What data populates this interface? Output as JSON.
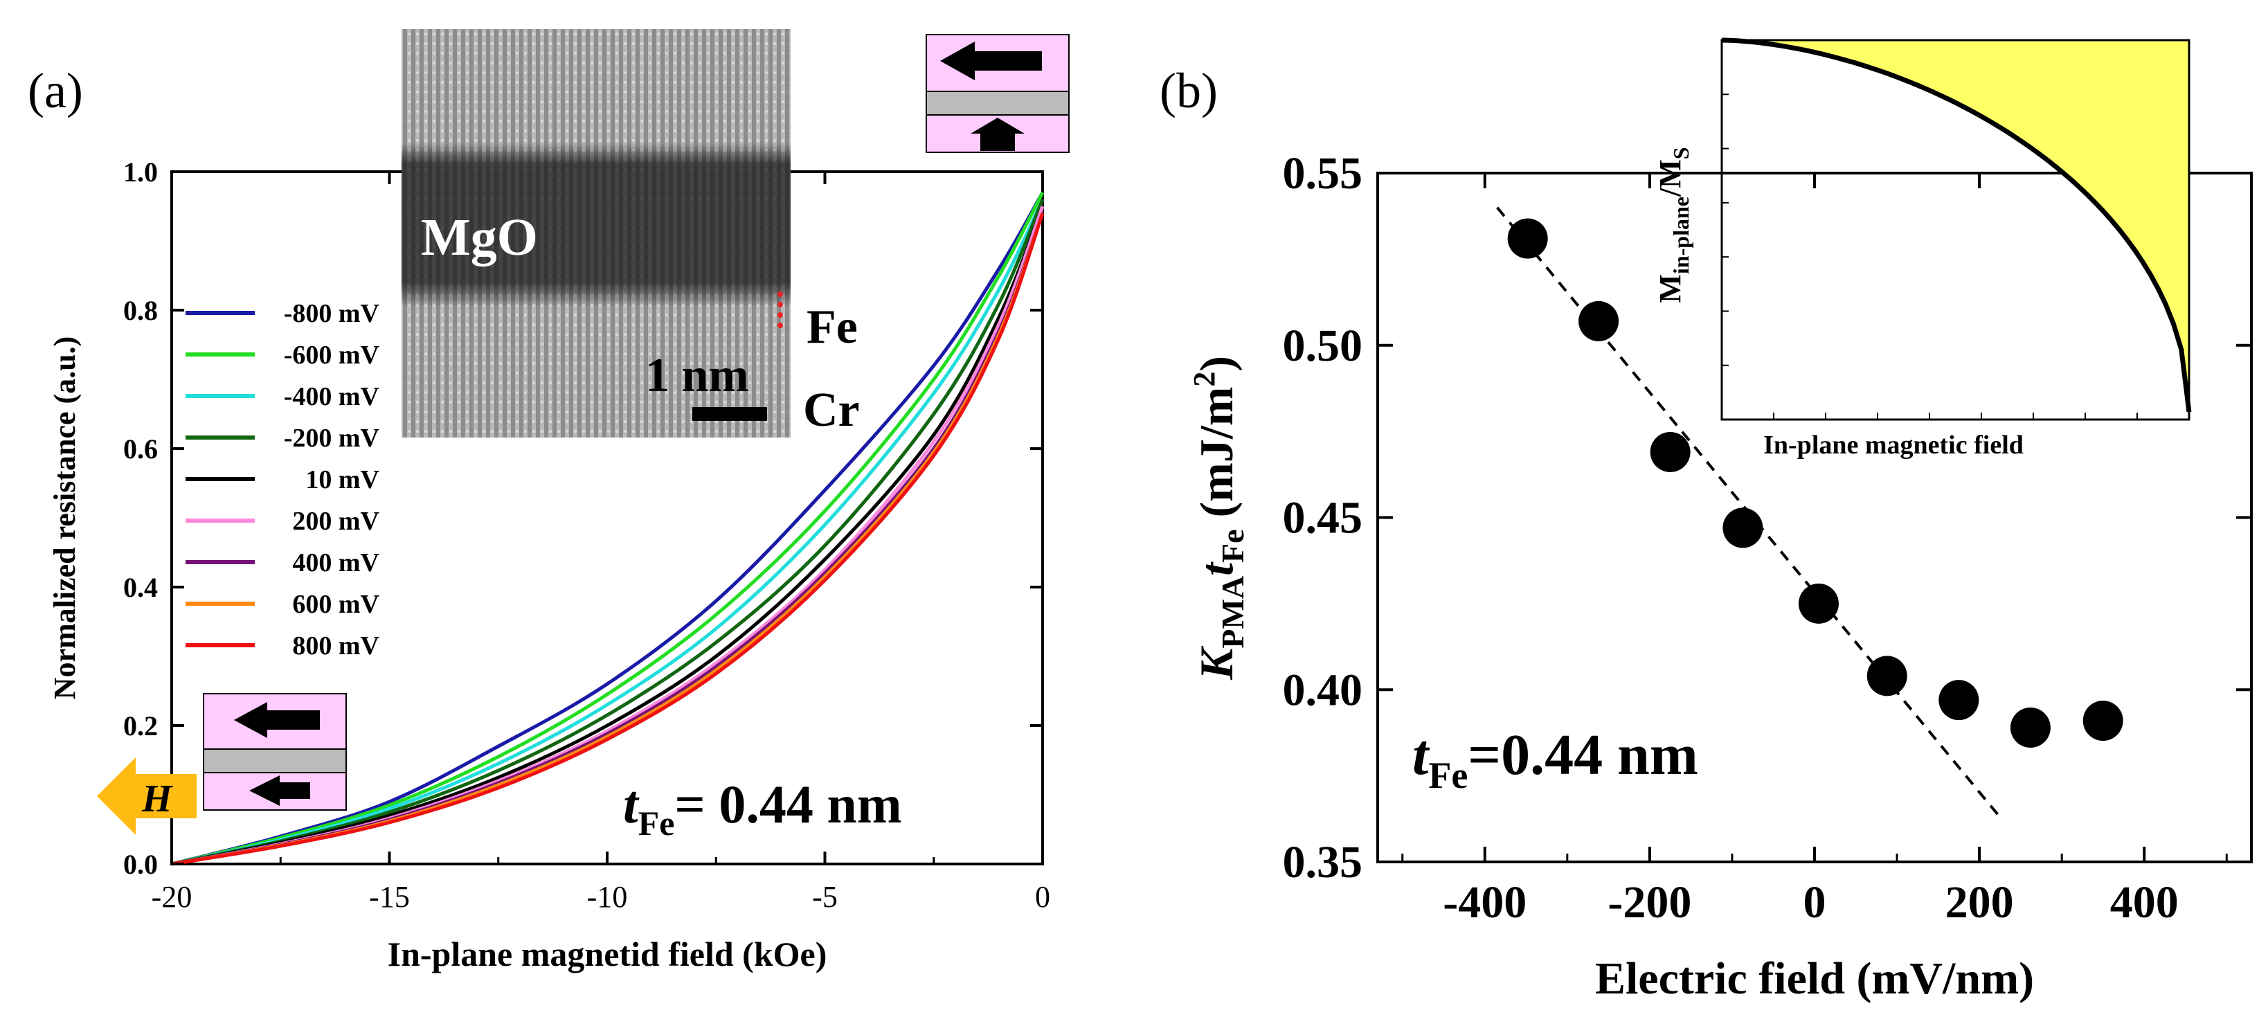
{
  "chart_data": [
    {
      "panel_label": "(a)",
      "type": "line",
      "xlabel": "In-plane magnetid field (kOe)",
      "ylabel": "Normalized resistance (a.u.)",
      "xlim": [
        -20,
        0
      ],
      "ylim": [
        0,
        1.0
      ],
      "x_ticks": [
        "-20",
        "-15",
        "-10",
        "-5",
        "0"
      ],
      "y_ticks": [
        "0.0",
        "0.2",
        "0.4",
        "0.6",
        "0.8",
        "1.0"
      ],
      "x_tick_values": [
        -20,
        -15,
        -10,
        -5,
        0
      ],
      "y_tick_values": [
        0,
        0.2,
        0.4,
        0.6,
        0.8,
        1.0
      ],
      "legend_position": "left",
      "series": [
        {
          "name": "-800 mV",
          "color": "#1a1aa8",
          "x": [
            -20,
            -17.5,
            -15,
            -12.5,
            -10,
            -7.5,
            -5,
            -2.5,
            -1,
            0
          ],
          "y": [
            0.0,
            0.04,
            0.09,
            0.17,
            0.26,
            0.38,
            0.54,
            0.72,
            0.86,
            0.97
          ]
        },
        {
          "name": "-600 mV",
          "color": "#22dd22",
          "x": [
            -20,
            -17.5,
            -15,
            -12.5,
            -10,
            -7.5,
            -5,
            -2.5,
            -1,
            0
          ],
          "y": [
            0.0,
            0.038,
            0.085,
            0.155,
            0.245,
            0.36,
            0.51,
            0.7,
            0.85,
            0.97
          ]
        },
        {
          "name": "-400 mV",
          "color": "#22dddd",
          "x": [
            -20,
            -17.5,
            -15,
            -12.5,
            -10,
            -7.5,
            -5,
            -2.5,
            -1,
            0
          ],
          "y": [
            0.0,
            0.035,
            0.08,
            0.145,
            0.23,
            0.34,
            0.49,
            0.68,
            0.83,
            0.96
          ]
        },
        {
          "name": "-200 mV",
          "color": "#116611",
          "x": [
            -20,
            -17.5,
            -15,
            -12.5,
            -10,
            -7.5,
            -5,
            -2.5,
            -1,
            0
          ],
          "y": [
            0.0,
            0.033,
            0.075,
            0.135,
            0.215,
            0.32,
            0.46,
            0.65,
            0.81,
            0.96
          ]
        },
        {
          "name": "10 mV",
          "color": "#000000",
          "x": [
            -20,
            -17.5,
            -15,
            -12.5,
            -10,
            -7.5,
            -5,
            -2.5,
            -1,
            0
          ],
          "y": [
            0.0,
            0.031,
            0.07,
            0.125,
            0.2,
            0.3,
            0.44,
            0.62,
            0.79,
            0.95
          ]
        },
        {
          "name": "200 mV",
          "color": "#ff88dd",
          "x": [
            -20,
            -17.5,
            -15,
            -12.5,
            -10,
            -7.5,
            -5,
            -2.5,
            -1,
            0
          ],
          "y": [
            0.0,
            0.029,
            0.066,
            0.12,
            0.192,
            0.29,
            0.425,
            0.61,
            0.78,
            0.95
          ]
        },
        {
          "name": "400 mV",
          "color": "#771177",
          "x": [
            -20,
            -17.5,
            -15,
            -12.5,
            -10,
            -7.5,
            -5,
            -2.5,
            -1,
            0
          ],
          "y": [
            0.0,
            0.028,
            0.064,
            0.117,
            0.188,
            0.285,
            0.42,
            0.6,
            0.77,
            0.94
          ]
        },
        {
          "name": "600 mV",
          "color": "#ff8811",
          "x": [
            -20,
            -17.5,
            -15,
            -12.5,
            -10,
            -7.5,
            -5,
            -2.5,
            -1,
            0
          ],
          "y": [
            0.0,
            0.027,
            0.062,
            0.114,
            0.184,
            0.28,
            0.415,
            0.595,
            0.765,
            0.94
          ]
        },
        {
          "name": "800 mV",
          "color": "#ee1111",
          "x": [
            -20,
            -17.5,
            -15,
            -12.5,
            -10,
            -7.5,
            -5,
            -2.5,
            -1,
            0
          ],
          "y": [
            0.0,
            0.026,
            0.06,
            0.11,
            0.18,
            0.275,
            0.41,
            0.59,
            0.76,
            0.94
          ]
        }
      ],
      "annotations": {
        "thickness_prefix": "t",
        "thickness_subscript": "Fe",
        "thickness_value": "= 0.44 nm",
        "field_arrow_label": "H",
        "tem_inset": {
          "layer_label": "MgO",
          "fe_label": "Fe",
          "cr_label": "Cr",
          "scale_bar_label": "1 nm"
        }
      }
    },
    {
      "panel_label": "(b)",
      "type": "scatter",
      "xlabel": "Electric field (mV/nm)",
      "ylabel_main": "K",
      "ylabel_sub1": "PMA",
      "ylabel_mid": "t",
      "ylabel_sub2": "Fe",
      "ylabel_unit": " (mJ/m",
      "ylabel_sup": "2",
      "ylabel_close": ")",
      "xlim": [
        -530,
        530
      ],
      "ylim": [
        0.35,
        0.55
      ],
      "x_ticks": [
        "-400",
        "-200",
        "0",
        "200",
        "400"
      ],
      "y_ticks": [
        "0.35",
        "0.40",
        "0.45",
        "0.50",
        "0.55"
      ],
      "x_tick_values": [
        -400,
        -200,
        0,
        200,
        400
      ],
      "y_tick_values": [
        0.35,
        0.4,
        0.45,
        0.5,
        0.55
      ],
      "x": [
        -348,
        -262,
        -175,
        -87,
        5,
        88,
        175,
        262,
        350
      ],
      "y": [
        0.531,
        0.507,
        0.469,
        0.447,
        0.425,
        0.404,
        0.397,
        0.389,
        0.391
      ],
      "fit_line": {
        "x": [
          -385,
          225
        ],
        "y": [
          0.54,
          0.363
        ],
        "style": "dashed"
      },
      "annotations": {
        "thickness_prefix": "t",
        "thickness_subscript": "Fe",
        "thickness_value": "=0.44 nm"
      },
      "inset": {
        "xlabel": "In-plane magnetic field",
        "ylabel_main": "M",
        "ylabel_sub": "in-plane",
        "ylabel_rest": "/M",
        "ylabel_sub2": "S",
        "fill_color": "#ffff66"
      }
    }
  ]
}
